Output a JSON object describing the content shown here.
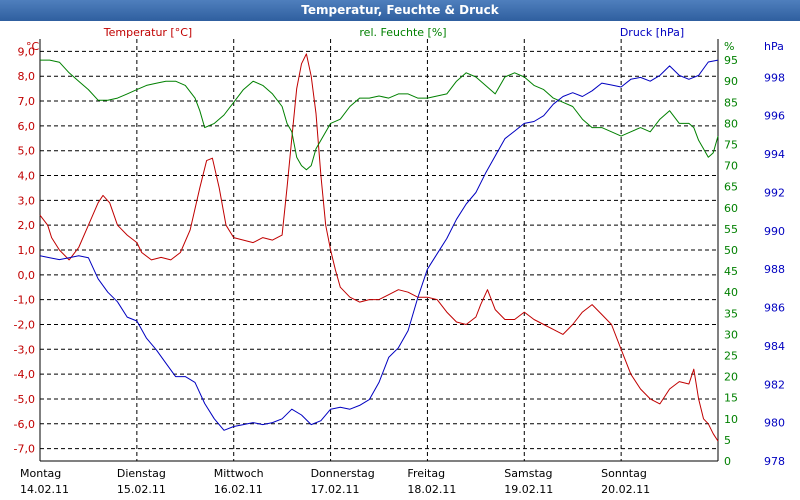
{
  "window": {
    "title": "Temperatur, Feuchte & Druck"
  },
  "chart_data": {
    "type": "line",
    "title": "Temperatur, Feuchte & Druck",
    "grid": true,
    "colors": {
      "temperature": "#c00000",
      "humidity": "#008000",
      "pressure": "#0000c0",
      "grid": "#000000"
    },
    "axes": {
      "temperature": {
        "label": "Temperatur [°C]",
        "unit": "°C",
        "range": [
          -7.5,
          9.5
        ],
        "ticks": [
          "9,0",
          "8,0",
          "7,0",
          "6,0",
          "5,0",
          "4,0",
          "3,0",
          "2,0",
          "1,0",
          "0,0",
          "-1,0",
          "-2,0",
          "-3,0",
          "-4,0",
          "-5,0",
          "-6,0",
          "-7,0"
        ]
      },
      "humidity": {
        "label": "rel. Feuchte [%]",
        "unit": "%",
        "range": [
          0,
          100
        ],
        "ticks": [
          "95",
          "90",
          "85",
          "80",
          "75",
          "70",
          "65",
          "60",
          "55",
          "50",
          "45",
          "40",
          "35",
          "30",
          "25",
          "20",
          "15",
          "10",
          "5",
          "0"
        ]
      },
      "pressure": {
        "label": "Druck [hPa]",
        "unit": "hPa",
        "range": [
          978,
          1000
        ],
        "ticks": [
          "998",
          "996",
          "994",
          "992",
          "990",
          "988",
          "986",
          "984",
          "982",
          "980",
          "978"
        ]
      }
    },
    "x_ticks": [
      {
        "day": "Montag",
        "date": "14.02.11"
      },
      {
        "day": "Dienstag",
        "date": "15.02.11"
      },
      {
        "day": "Mittwoch",
        "date": "16.02.11"
      },
      {
        "day": "Donnerstag",
        "date": "17.02.11"
      },
      {
        "day": "Freitag",
        "date": "18.02.11"
      },
      {
        "day": "Samstag",
        "date": "19.02.11"
      },
      {
        "day": "Sonntag",
        "date": "20.02.11"
      }
    ],
    "x_range": [
      0,
      7
    ],
    "series": [
      {
        "key": "temperature",
        "name": "Temperatur [°C]",
        "axis": "temperature",
        "points": [
          [
            0,
            2.4
          ],
          [
            0.08,
            2.0
          ],
          [
            0.12,
            1.5
          ],
          [
            0.2,
            1.0
          ],
          [
            0.3,
            0.6
          ],
          [
            0.4,
            1.1
          ],
          [
            0.5,
            2.0
          ],
          [
            0.6,
            2.9
          ],
          [
            0.65,
            3.2
          ],
          [
            0.72,
            2.9
          ],
          [
            0.8,
            2.0
          ],
          [
            0.9,
            1.6
          ],
          [
            1.0,
            1.3
          ],
          [
            1.05,
            0.9
          ],
          [
            1.15,
            0.6
          ],
          [
            1.25,
            0.7
          ],
          [
            1.35,
            0.6
          ],
          [
            1.45,
            0.9
          ],
          [
            1.55,
            1.8
          ],
          [
            1.65,
            3.5
          ],
          [
            1.72,
            4.6
          ],
          [
            1.78,
            4.7
          ],
          [
            1.85,
            3.5
          ],
          [
            1.92,
            2.0
          ],
          [
            2.0,
            1.5
          ],
          [
            2.1,
            1.4
          ],
          [
            2.2,
            1.3
          ],
          [
            2.3,
            1.5
          ],
          [
            2.4,
            1.4
          ],
          [
            2.5,
            1.6
          ],
          [
            2.55,
            3.5
          ],
          [
            2.6,
            5.5
          ],
          [
            2.65,
            7.5
          ],
          [
            2.7,
            8.5
          ],
          [
            2.75,
            8.9
          ],
          [
            2.8,
            8.0
          ],
          [
            2.85,
            6.5
          ],
          [
            2.9,
            4.0
          ],
          [
            2.95,
            2.0
          ],
          [
            3.0,
            1.0
          ],
          [
            3.05,
            0.2
          ],
          [
            3.1,
            -0.5
          ],
          [
            3.2,
            -0.9
          ],
          [
            3.3,
            -1.1
          ],
          [
            3.4,
            -1.0
          ],
          [
            3.5,
            -1.0
          ],
          [
            3.6,
            -0.8
          ],
          [
            3.7,
            -0.6
          ],
          [
            3.8,
            -0.7
          ],
          [
            3.9,
            -0.9
          ],
          [
            4.0,
            -0.9
          ],
          [
            4.1,
            -1.0
          ],
          [
            4.2,
            -1.5
          ],
          [
            4.3,
            -1.9
          ],
          [
            4.4,
            -2.0
          ],
          [
            4.5,
            -1.7
          ],
          [
            4.55,
            -1.2
          ],
          [
            4.62,
            -0.6
          ],
          [
            4.7,
            -1.4
          ],
          [
            4.8,
            -1.8
          ],
          [
            4.9,
            -1.8
          ],
          [
            5.0,
            -1.5
          ],
          [
            5.1,
            -1.8
          ],
          [
            5.2,
            -2.0
          ],
          [
            5.3,
            -2.2
          ],
          [
            5.4,
            -2.4
          ],
          [
            5.5,
            -2.0
          ],
          [
            5.6,
            -1.5
          ],
          [
            5.7,
            -1.2
          ],
          [
            5.8,
            -1.6
          ],
          [
            5.9,
            -2.0
          ],
          [
            6.0,
            -3.0
          ],
          [
            6.1,
            -4.0
          ],
          [
            6.2,
            -4.6
          ],
          [
            6.3,
            -5.0
          ],
          [
            6.4,
            -5.2
          ],
          [
            6.5,
            -4.6
          ],
          [
            6.6,
            -4.3
          ],
          [
            6.7,
            -4.4
          ],
          [
            6.75,
            -3.8
          ],
          [
            6.8,
            -5.0
          ],
          [
            6.85,
            -5.8
          ],
          [
            6.9,
            -6.0
          ],
          [
            6.95,
            -6.4
          ],
          [
            7.0,
            -6.7
          ]
        ]
      },
      {
        "key": "humidity",
        "name": "rel. Feuchte [%]",
        "axis": "humidity",
        "points": [
          [
            0,
            95
          ],
          [
            0.1,
            95
          ],
          [
            0.2,
            94.5
          ],
          [
            0.3,
            92
          ],
          [
            0.4,
            90
          ],
          [
            0.5,
            88
          ],
          [
            0.6,
            85.5
          ],
          [
            0.7,
            85.5
          ],
          [
            0.8,
            86
          ],
          [
            0.9,
            87
          ],
          [
            1.0,
            88
          ],
          [
            1.1,
            89
          ],
          [
            1.2,
            89.5
          ],
          [
            1.3,
            90
          ],
          [
            1.4,
            90
          ],
          [
            1.5,
            89
          ],
          [
            1.6,
            86
          ],
          [
            1.65,
            83
          ],
          [
            1.7,
            79
          ],
          [
            1.8,
            80
          ],
          [
            1.9,
            82
          ],
          [
            2.0,
            85
          ],
          [
            2.1,
            88
          ],
          [
            2.2,
            90
          ],
          [
            2.3,
            89
          ],
          [
            2.4,
            87
          ],
          [
            2.5,
            84
          ],
          [
            2.55,
            80
          ],
          [
            2.6,
            78
          ],
          [
            2.65,
            72
          ],
          [
            2.7,
            70
          ],
          [
            2.75,
            69
          ],
          [
            2.8,
            70
          ],
          [
            2.85,
            74
          ],
          [
            2.9,
            76
          ],
          [
            3.0,
            80
          ],
          [
            3.1,
            81
          ],
          [
            3.2,
            84
          ],
          [
            3.3,
            86
          ],
          [
            3.4,
            86
          ],
          [
            3.5,
            86.5
          ],
          [
            3.6,
            86
          ],
          [
            3.7,
            87
          ],
          [
            3.8,
            87
          ],
          [
            3.9,
            86
          ],
          [
            4.0,
            86
          ],
          [
            4.1,
            86.5
          ],
          [
            4.2,
            87
          ],
          [
            4.3,
            90
          ],
          [
            4.4,
            92
          ],
          [
            4.5,
            91
          ],
          [
            4.6,
            89
          ],
          [
            4.7,
            87
          ],
          [
            4.8,
            91
          ],
          [
            4.9,
            92
          ],
          [
            5.0,
            91
          ],
          [
            5.1,
            89
          ],
          [
            5.2,
            88
          ],
          [
            5.3,
            86
          ],
          [
            5.4,
            85
          ],
          [
            5.5,
            84
          ],
          [
            5.6,
            81
          ],
          [
            5.7,
            79
          ],
          [
            5.8,
            79
          ],
          [
            5.9,
            78
          ],
          [
            6.0,
            77
          ],
          [
            6.1,
            78
          ],
          [
            6.2,
            79
          ],
          [
            6.3,
            78
          ],
          [
            6.4,
            81
          ],
          [
            6.5,
            83
          ],
          [
            6.6,
            80
          ],
          [
            6.7,
            80
          ],
          [
            6.75,
            79
          ],
          [
            6.8,
            76
          ],
          [
            6.85,
            74
          ],
          [
            6.9,
            72
          ],
          [
            6.95,
            73
          ],
          [
            7.0,
            77
          ]
        ]
      },
      {
        "key": "pressure",
        "name": "Druck [hPa]",
        "axis": "pressure",
        "points": [
          [
            0,
            988.7
          ],
          [
            0.1,
            988.6
          ],
          [
            0.2,
            988.5
          ],
          [
            0.3,
            988.6
          ],
          [
            0.4,
            988.7
          ],
          [
            0.5,
            988.6
          ],
          [
            0.6,
            987.5
          ],
          [
            0.7,
            986.8
          ],
          [
            0.8,
            986.3
          ],
          [
            0.9,
            985.5
          ],
          [
            1.0,
            985.3
          ],
          [
            1.1,
            984.4
          ],
          [
            1.2,
            983.8
          ],
          [
            1.3,
            983.1
          ],
          [
            1.4,
            982.4
          ],
          [
            1.5,
            982.4
          ],
          [
            1.6,
            982.1
          ],
          [
            1.7,
            981.0
          ],
          [
            1.8,
            980.2
          ],
          [
            1.9,
            979.6
          ],
          [
            2.0,
            979.8
          ],
          [
            2.1,
            979.9
          ],
          [
            2.2,
            980.0
          ],
          [
            2.3,
            979.9
          ],
          [
            2.4,
            980.0
          ],
          [
            2.5,
            980.2
          ],
          [
            2.6,
            980.7
          ],
          [
            2.7,
            980.4
          ],
          [
            2.8,
            979.9
          ],
          [
            2.9,
            980.1
          ],
          [
            3.0,
            980.7
          ],
          [
            3.1,
            980.8
          ],
          [
            3.2,
            980.7
          ],
          [
            3.3,
            980.9
          ],
          [
            3.4,
            981.2
          ],
          [
            3.5,
            982.1
          ],
          [
            3.6,
            983.4
          ],
          [
            3.7,
            983.9
          ],
          [
            3.8,
            984.8
          ],
          [
            3.9,
            986.5
          ],
          [
            4.0,
            988.0
          ],
          [
            4.1,
            988.8
          ],
          [
            4.2,
            989.6
          ],
          [
            4.3,
            990.6
          ],
          [
            4.4,
            991.4
          ],
          [
            4.5,
            992.0
          ],
          [
            4.6,
            993.0
          ],
          [
            4.7,
            993.9
          ],
          [
            4.8,
            994.8
          ],
          [
            4.9,
            995.2
          ],
          [
            5.0,
            995.6
          ],
          [
            5.1,
            995.7
          ],
          [
            5.2,
            996.0
          ],
          [
            5.3,
            996.6
          ],
          [
            5.4,
            997.0
          ],
          [
            5.5,
            997.2
          ],
          [
            5.6,
            997.0
          ],
          [
            5.7,
            997.3
          ],
          [
            5.8,
            997.7
          ],
          [
            5.9,
            997.6
          ],
          [
            6.0,
            997.5
          ],
          [
            6.1,
            997.9
          ],
          [
            6.2,
            998.0
          ],
          [
            6.3,
            997.8
          ],
          [
            6.4,
            998.1
          ],
          [
            6.5,
            998.6
          ],
          [
            6.6,
            998.1
          ],
          [
            6.7,
            997.9
          ],
          [
            6.8,
            998.1
          ],
          [
            6.9,
            998.8
          ],
          [
            7.0,
            998.9
          ]
        ]
      }
    ]
  }
}
